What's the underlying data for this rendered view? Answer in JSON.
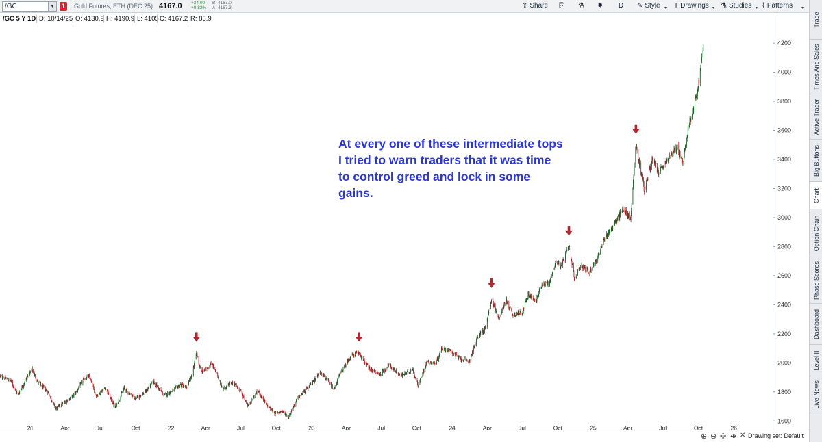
{
  "toolbar": {
    "symbol": "/GC",
    "link_badge": "1",
    "description": "Gold Futures, ETH (DEC 25)",
    "last_price": "4167.0",
    "net_change_line1": "+34.00",
    "net_change_line2": "+0.82%",
    "bid_line": "B: 4167.0",
    "ask_line": "A: 4167.3",
    "buttons": [
      {
        "name": "share",
        "label": "Share",
        "icon": "share-icon"
      },
      {
        "name": "save",
        "label": "",
        "icon": "save-icon"
      },
      {
        "name": "flask",
        "label": "",
        "icon": "flask-icon"
      },
      {
        "name": "settings",
        "label": "",
        "icon": "gear-icon"
      },
      {
        "name": "d",
        "label": "D",
        "icon": ""
      },
      {
        "name": "style",
        "label": "Style",
        "icon": "style-icon"
      },
      {
        "name": "drawings",
        "label": "Drawings",
        "icon": "drawings-icon"
      },
      {
        "name": "studies",
        "label": "Studies",
        "icon": "studies-icon"
      },
      {
        "name": "patterns",
        "label": "Patterns",
        "icon": "patterns-icon"
      }
    ]
  },
  "infobar": {
    "study": "/GC 5 Y 1D",
    "date": "D: 10/14/25",
    "open": "O: 4130.9",
    "high": "H: 4190.9",
    "low": "L: 4105",
    "close": "C: 4167.2",
    "range": "R: 85.9"
  },
  "annotation": "At every one of these intermediate tops I tried to warn traders that it was time to control greed and lock in some gains.",
  "colors": {
    "up": "#1f5f2a",
    "down": "#b0202a",
    "arrow": "#b5262e",
    "annotation": "#2a36d6"
  },
  "chart_data": {
    "type": "candlestick",
    "y_ticks": [
      "1600",
      "1800",
      "2000",
      "2200",
      "2400",
      "2600",
      "2800",
      "3000",
      "3200",
      "3400",
      "3600",
      "3800",
      "4000",
      "4200"
    ],
    "y_tick_values": [
      1600,
      1800,
      2000,
      2200,
      2400,
      2600,
      2800,
      3000,
      3200,
      3400,
      3600,
      3800,
      4000,
      4200
    ],
    "ylim": [
      1540,
      4290
    ],
    "x_ticks": [
      "21",
      "Apr",
      "Jul",
      "Oct",
      "22",
      "Apr",
      "Jul",
      "Oct",
      "23",
      "Apr",
      "Jul",
      "Oct",
      "24",
      "Apr",
      "Jul",
      "Oct",
      "25",
      "Apr",
      "Jul",
      "Oct",
      "26"
    ],
    "x_tick_dates": [
      "2021-01-01",
      "2021-04-01",
      "2021-07-01",
      "2021-10-01",
      "2022-01-01",
      "2022-04-01",
      "2022-07-01",
      "2022-10-01",
      "2023-01-01",
      "2023-04-01",
      "2023-07-01",
      "2023-10-01",
      "2024-01-01",
      "2024-04-01",
      "2024-07-01",
      "2024-10-01",
      "2025-01-01",
      "2025-04-01",
      "2025-07-01",
      "2025-10-01",
      "2026-01-01"
    ],
    "xlim": [
      "2020-10-14",
      "2026-04-12"
    ],
    "path": [
      [
        "2020-10-14",
        1908
      ],
      [
        "2020-11-10",
        1880
      ],
      [
        "2020-11-30",
        1780
      ],
      [
        "2020-12-20",
        1885
      ],
      [
        "2021-01-05",
        1955
      ],
      [
        "2021-01-20",
        1870
      ],
      [
        "2021-02-15",
        1800
      ],
      [
        "2021-03-08",
        1685
      ],
      [
        "2021-04-01",
        1730
      ],
      [
        "2021-04-25",
        1780
      ],
      [
        "2021-05-20",
        1890
      ],
      [
        "2021-06-03",
        1905
      ],
      [
        "2021-06-20",
        1770
      ],
      [
        "2021-07-15",
        1830
      ],
      [
        "2021-08-09",
        1690
      ],
      [
        "2021-09-01",
        1825
      ],
      [
        "2021-09-30",
        1755
      ],
      [
        "2021-10-25",
        1795
      ],
      [
        "2021-11-16",
        1870
      ],
      [
        "2021-12-15",
        1775
      ],
      [
        "2022-01-05",
        1810
      ],
      [
        "2022-01-25",
        1850
      ],
      [
        "2022-02-10",
        1830
      ],
      [
        "2022-02-24",
        1910
      ],
      [
        "2022-03-08",
        2070
      ],
      [
        "2022-03-20",
        1935
      ],
      [
        "2022-04-18",
        1995
      ],
      [
        "2022-05-15",
        1820
      ],
      [
        "2022-06-10",
        1865
      ],
      [
        "2022-06-30",
        1810
      ],
      [
        "2022-07-20",
        1705
      ],
      [
        "2022-08-15",
        1810
      ],
      [
        "2022-09-05",
        1715
      ],
      [
        "2022-09-28",
        1650
      ],
      [
        "2022-10-15",
        1670
      ],
      [
        "2022-11-03",
        1630
      ],
      [
        "2022-11-25",
        1755
      ],
      [
        "2022-12-20",
        1820
      ],
      [
        "2023-01-25",
        1940
      ],
      [
        "2023-02-28",
        1815
      ],
      [
        "2023-03-15",
        1920
      ],
      [
        "2023-04-13",
        2050
      ],
      [
        "2023-05-04",
        2070
      ],
      [
        "2023-05-30",
        1960
      ],
      [
        "2023-06-29",
        1920
      ],
      [
        "2023-07-20",
        1985
      ],
      [
        "2023-08-21",
        1910
      ],
      [
        "2023-09-20",
        1955
      ],
      [
        "2023-10-05",
        1840
      ],
      [
        "2023-10-27",
        2010
      ],
      [
        "2023-11-20",
        1995
      ],
      [
        "2023-12-04",
        2100
      ],
      [
        "2023-12-28",
        2080
      ],
      [
        "2024-01-20",
        2030
      ],
      [
        "2024-02-14",
        2010
      ],
      [
        "2024-03-08",
        2185
      ],
      [
        "2024-03-28",
        2240
      ],
      [
        "2024-04-12",
        2440
      ],
      [
        "2024-05-01",
        2310
      ],
      [
        "2024-05-20",
        2430
      ],
      [
        "2024-06-07",
        2330
      ],
      [
        "2024-07-01",
        2350
      ],
      [
        "2024-07-17",
        2470
      ],
      [
        "2024-08-05",
        2420
      ],
      [
        "2024-08-20",
        2540
      ],
      [
        "2024-09-10",
        2550
      ],
      [
        "2024-09-26",
        2700
      ],
      [
        "2024-10-10",
        2660
      ],
      [
        "2024-10-30",
        2800
      ],
      [
        "2024-11-14",
        2570
      ],
      [
        "2024-11-30",
        2680
      ],
      [
        "2024-12-20",
        2620
      ],
      [
        "2025-01-10",
        2710
      ],
      [
        "2025-02-05",
        2880
      ],
      [
        "2025-02-24",
        2950
      ],
      [
        "2025-03-20",
        3060
      ],
      [
        "2025-04-08",
        2990
      ],
      [
        "2025-04-22",
        3500
      ],
      [
        "2025-05-14",
        3190
      ],
      [
        "2025-06-03",
        3400
      ],
      [
        "2025-06-20",
        3310
      ],
      [
        "2025-07-20",
        3420
      ],
      [
        "2025-08-08",
        3480
      ],
      [
        "2025-08-22",
        3370
      ],
      [
        "2025-09-05",
        3620
      ],
      [
        "2025-09-22",
        3800
      ],
      [
        "2025-10-02",
        3920
      ],
      [
        "2025-10-09",
        4080
      ],
      [
        "2025-10-14",
        4167
      ]
    ],
    "tops_marked": [
      "2022-03-08",
      "2023-05-04",
      "2024-04-12",
      "2024-10-30",
      "2025-04-22"
    ]
  },
  "drawing_set": "Drawing set: Default",
  "bottom_icons": [
    "zoom-in-icon",
    "zoom-out-icon",
    "pan-icon",
    "reset-zoom-icon",
    "cross-icon"
  ],
  "right_tabs": [
    "Trade",
    "Times And Sales",
    "Active Trader",
    "Big Buttons",
    "Chart",
    "Option Chain",
    "Phase Scores",
    "Dashboard",
    "Level II",
    "Live News"
  ],
  "active_tab": "Chart"
}
